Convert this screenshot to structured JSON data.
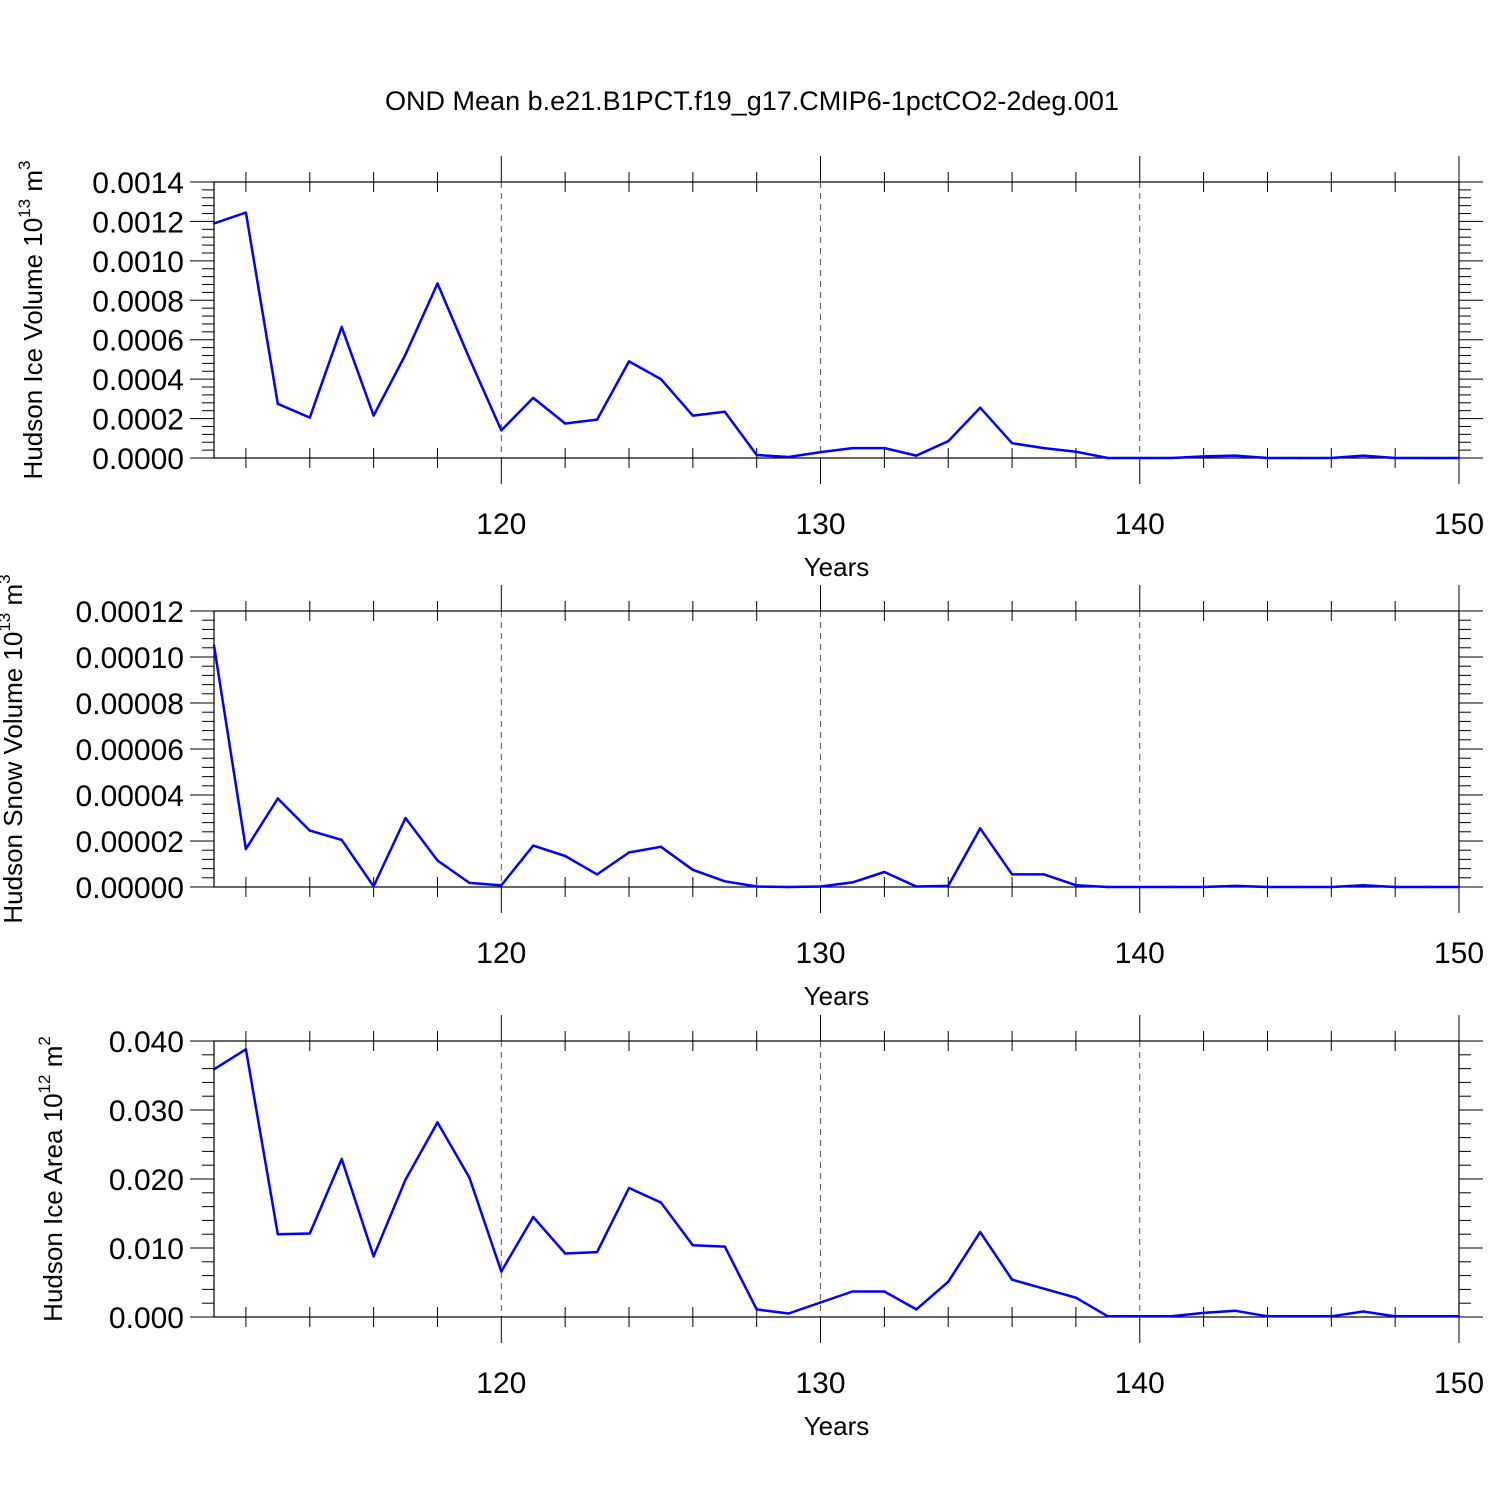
{
  "title": "OND Mean b.e21.B1PCT.f19_g17.CMIP6-1pctCO2-2deg.001",
  "chart_data": [
    {
      "type": "line",
      "xlabel": "Years",
      "ylabel": "Hudson Ice Volume 10",
      "ylabel_exp": "13",
      "ylabel_unit": " m",
      "ylabel_unit_exp": "3",
      "xlim": [
        111,
        150
      ],
      "ylim": [
        0,
        0.0014
      ],
      "grid": "vertical dashed at major x ticks",
      "color": "#0000ff",
      "xticks": [
        120,
        130,
        140,
        150
      ],
      "xtick_labels": [
        "120",
        "130",
        "140",
        "150"
      ],
      "yticks": [
        0,
        0.0002,
        0.0004,
        0.0006,
        0.0008,
        0.001,
        0.0012,
        0.0014
      ],
      "ytick_labels": [
        "0.0000",
        "0.0002",
        "0.0004",
        "0.0006",
        "0.0008",
        "0.0010",
        "0.0012",
        "0.0014"
      ],
      "x": [
        111,
        112,
        113,
        114,
        115,
        116,
        117,
        118,
        119,
        120,
        121,
        122,
        123,
        124,
        125,
        126,
        127,
        128,
        129,
        130,
        131,
        132,
        133,
        134,
        135,
        136,
        137,
        138,
        139,
        140,
        141,
        142,
        143,
        144,
        145,
        146,
        147,
        148,
        149,
        150
      ],
      "values": [
        0.00119,
        0.001245,
        0.000275,
        0.000205,
        0.000665,
        0.000215,
        0.000525,
        0.000885,
        0.000505,
        0.00014,
        0.000305,
        0.000175,
        0.000195,
        0.00049,
        0.0004,
        0.000215,
        0.000235,
        1.5e-05,
        5e-06,
        3e-05,
        5e-05,
        5e-05,
        1.2e-05,
        8.5e-05,
        0.000255,
        7.5e-05,
        5e-05,
        3.2e-05,
        0.0,
        0.0,
        0.0,
        8e-06,
        1.2e-05,
        0.0,
        0.0,
        0.0,
        1.2e-05,
        0.0,
        0.0,
        0.0
      ]
    },
    {
      "type": "line",
      "xlabel": "Years",
      "ylabel": "Hudson Snow Volume 10",
      "ylabel_exp": "13",
      "ylabel_unit": " m",
      "ylabel_unit_exp": "3",
      "xlim": [
        111,
        150
      ],
      "ylim": [
        0,
        0.00012
      ],
      "grid": "vertical dashed at major x ticks",
      "color": "#0000ff",
      "xticks": [
        120,
        130,
        140,
        150
      ],
      "xtick_labels": [
        "120",
        "130",
        "140",
        "150"
      ],
      "yticks": [
        0,
        2e-05,
        4e-05,
        6e-05,
        8e-05,
        0.0001,
        0.00012
      ],
      "ytick_labels": [
        "0.00000",
        "0.00002",
        "0.00004",
        "0.00006",
        "0.00008",
        "0.00010",
        "0.00012"
      ],
      "x": [
        111,
        112,
        113,
        114,
        115,
        116,
        117,
        118,
        119,
        120,
        121,
        122,
        123,
        124,
        125,
        126,
        127,
        128,
        129,
        130,
        131,
        132,
        133,
        134,
        135,
        136,
        137,
        138,
        139,
        140,
        141,
        142,
        143,
        144,
        145,
        146,
        147,
        148,
        149,
        150
      ],
      "values": [
        0.000105,
        1.65e-05,
        3.85e-05,
        2.45e-05,
        2.05e-05,
        3e-07,
        3e-05,
        1.15e-05,
        1.8e-06,
        7e-07,
        1.8e-05,
        1.35e-05,
        5.5e-06,
        1.5e-05,
        1.75e-05,
        7.5e-06,
        2.5e-06,
        2e-07,
        0.0,
        2e-07,
        2e-06,
        6.5e-06,
        2e-07,
        5e-07,
        2.55e-05,
        5.5e-06,
        5.5e-06,
        8e-07,
        0.0,
        0.0,
        0.0,
        0.0,
        5e-07,
        0.0,
        0.0,
        0.0,
        8e-07,
        0.0,
        0.0,
        0.0
      ]
    },
    {
      "type": "line",
      "xlabel": "Years",
      "ylabel": "Hudson Ice Area 10",
      "ylabel_exp": "12",
      "ylabel_unit": " m",
      "ylabel_unit_exp": "2",
      "xlim": [
        111,
        150
      ],
      "ylim": [
        0,
        0.04
      ],
      "grid": "vertical dashed at major x ticks",
      "color": "#0000ff",
      "xticks": [
        120,
        130,
        140,
        150
      ],
      "xtick_labels": [
        "120",
        "130",
        "140",
        "150"
      ],
      "yticks": [
        0,
        0.01,
        0.02,
        0.03,
        0.04
      ],
      "ytick_labels": [
        "0.000",
        "0.010",
        "0.020",
        "0.030",
        "0.040"
      ],
      "x": [
        111,
        112,
        113,
        114,
        115,
        116,
        117,
        118,
        119,
        120,
        121,
        122,
        123,
        124,
        125,
        126,
        127,
        128,
        129,
        130,
        131,
        132,
        133,
        134,
        135,
        136,
        137,
        138,
        139,
        140,
        141,
        142,
        143,
        144,
        145,
        146,
        147,
        148,
        149,
        150
      ],
      "values": [
        0.0359,
        0.0388,
        0.012,
        0.0121,
        0.0229,
        0.0088,
        0.0199,
        0.0282,
        0.0202,
        0.0066,
        0.0145,
        0.0092,
        0.0094,
        0.0187,
        0.0166,
        0.0104,
        0.0102,
        0.0011,
        0.0005,
        0.0021,
        0.0037,
        0.0037,
        0.0011,
        0.0051,
        0.0123,
        0.0054,
        0.0041,
        0.0028,
        0.0001,
        0.0001,
        0.0001,
        0.0006,
        0.0009,
        0.0001,
        0.0001,
        0.0001,
        0.0008,
        0.0001,
        0.0001,
        0.0001
      ]
    }
  ]
}
